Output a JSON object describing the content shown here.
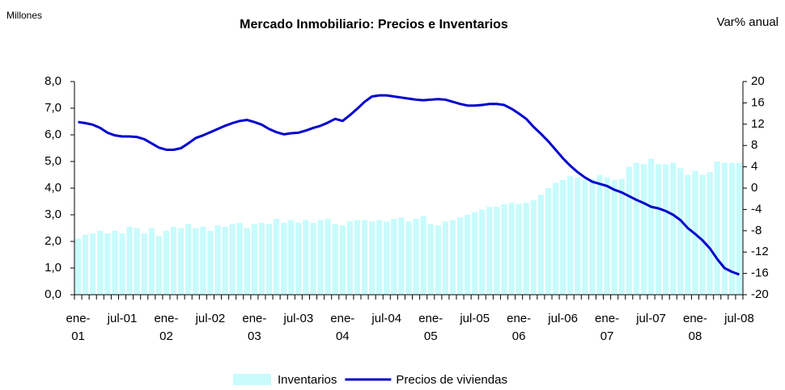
{
  "chart_data": {
    "type": "bar",
    "title": "Mercado Inmobiliario: Precios e Inventarios",
    "y_label": "Millones",
    "y2_label": "Var% anual",
    "categories": [
      "ene-\n01",
      null,
      null,
      null,
      null,
      null,
      "jul-01",
      null,
      null,
      null,
      null,
      null,
      "ene-\n02",
      null,
      null,
      null,
      null,
      null,
      "jul-02",
      null,
      null,
      null,
      null,
      null,
      "ene-\n03",
      null,
      null,
      null,
      null,
      null,
      "jul-03",
      null,
      null,
      null,
      null,
      null,
      "ene-\n04",
      null,
      null,
      null,
      null,
      null,
      "jul-04",
      null,
      null,
      null,
      null,
      null,
      "ene-\n05",
      null,
      null,
      null,
      null,
      null,
      "jul-05",
      null,
      null,
      null,
      null,
      null,
      "ene-\n06",
      null,
      null,
      null,
      null,
      null,
      "jul-06",
      null,
      null,
      null,
      null,
      null,
      "ene-\n07",
      null,
      null,
      null,
      null,
      null,
      "jul-07",
      null,
      null,
      null,
      null,
      null,
      "ene-\n08",
      null,
      null,
      null,
      null,
      null,
      "jul-08"
    ],
    "series": [
      {
        "name": "Inventarios",
        "type": "bar",
        "color": "#c8fbfc",
        "values": [
          2.1,
          2.25,
          2.3,
          2.4,
          2.3,
          2.4,
          2.3,
          2.55,
          2.5,
          2.3,
          2.5,
          2.2,
          2.4,
          2.55,
          2.5,
          2.65,
          2.5,
          2.55,
          2.4,
          2.6,
          2.55,
          2.65,
          2.7,
          2.5,
          2.65,
          2.7,
          2.65,
          2.85,
          2.7,
          2.8,
          2.7,
          2.8,
          2.7,
          2.8,
          2.85,
          2.65,
          2.6,
          2.75,
          2.8,
          2.8,
          2.75,
          2.8,
          2.75,
          2.85,
          2.9,
          2.75,
          2.85,
          2.95,
          2.65,
          2.6,
          2.75,
          2.8,
          2.9,
          3.0,
          3.1,
          3.2,
          3.3,
          3.3,
          3.4,
          3.45,
          3.4,
          3.45,
          3.55,
          3.75,
          4.0,
          4.2,
          4.3,
          4.45,
          4.4,
          4.3,
          4.35,
          4.5,
          4.4,
          4.3,
          4.35,
          4.8,
          4.95,
          4.9,
          5.1,
          4.9,
          4.9,
          4.95,
          4.75,
          4.5,
          4.65,
          4.5,
          4.6,
          5.0,
          4.95,
          4.95,
          4.95
        ]
      },
      {
        "name": "Precios de viviendas",
        "type": "line",
        "axis": "y2",
        "color": "#0000cc",
        "values": [
          12.4,
          12.2,
          11.9,
          11.3,
          10.4,
          9.9,
          9.7,
          9.7,
          9.6,
          9.2,
          8.4,
          7.6,
          7.2,
          7.2,
          7.5,
          8.4,
          9.4,
          9.9,
          10.5,
          11.1,
          11.7,
          12.2,
          12.6,
          12.8,
          12.4,
          11.9,
          11.1,
          10.5,
          10.1,
          10.3,
          10.4,
          10.8,
          11.3,
          11.7,
          12.3,
          13.0,
          12.6,
          13.7,
          14.9,
          16.2,
          17.2,
          17.4,
          17.4,
          17.2,
          17.0,
          16.8,
          16.6,
          16.5,
          16.6,
          16.7,
          16.6,
          16.2,
          15.8,
          15.5,
          15.5,
          15.6,
          15.8,
          15.8,
          15.6,
          14.9,
          14.0,
          13.0,
          11.5,
          10.2,
          8.8,
          7.2,
          5.6,
          4.2,
          3.0,
          2.0,
          1.2,
          0.8,
          0.4,
          -0.3,
          -0.8,
          -1.5,
          -2.2,
          -2.8,
          -3.5,
          -3.8,
          -4.3,
          -5.0,
          -6.0,
          -7.5,
          -8.6,
          -9.8,
          -11.3,
          -13.3,
          -15.0,
          -15.7,
          -16.2
        ]
      }
    ],
    "ylim": [
      0,
      8
    ],
    "yticks": [
      {
        "value": 0,
        "label": "0,0"
      },
      {
        "value": 1,
        "label": "1,0"
      },
      {
        "value": 2,
        "label": "2,0"
      },
      {
        "value": 3,
        "label": "3,0"
      },
      {
        "value": 4,
        "label": "4,0"
      },
      {
        "value": 5,
        "label": "5,0"
      },
      {
        "value": 6,
        "label": "6,0"
      },
      {
        "value": 7,
        "label": "7,0"
      },
      {
        "value": 8,
        "label": "8,0"
      }
    ],
    "y2lim": [
      -20,
      20
    ],
    "y2ticks": [
      -20,
      -16,
      -12,
      -8,
      -4,
      0,
      4,
      8,
      12,
      16,
      20
    ],
    "grid": false,
    "legend": "bottom"
  }
}
